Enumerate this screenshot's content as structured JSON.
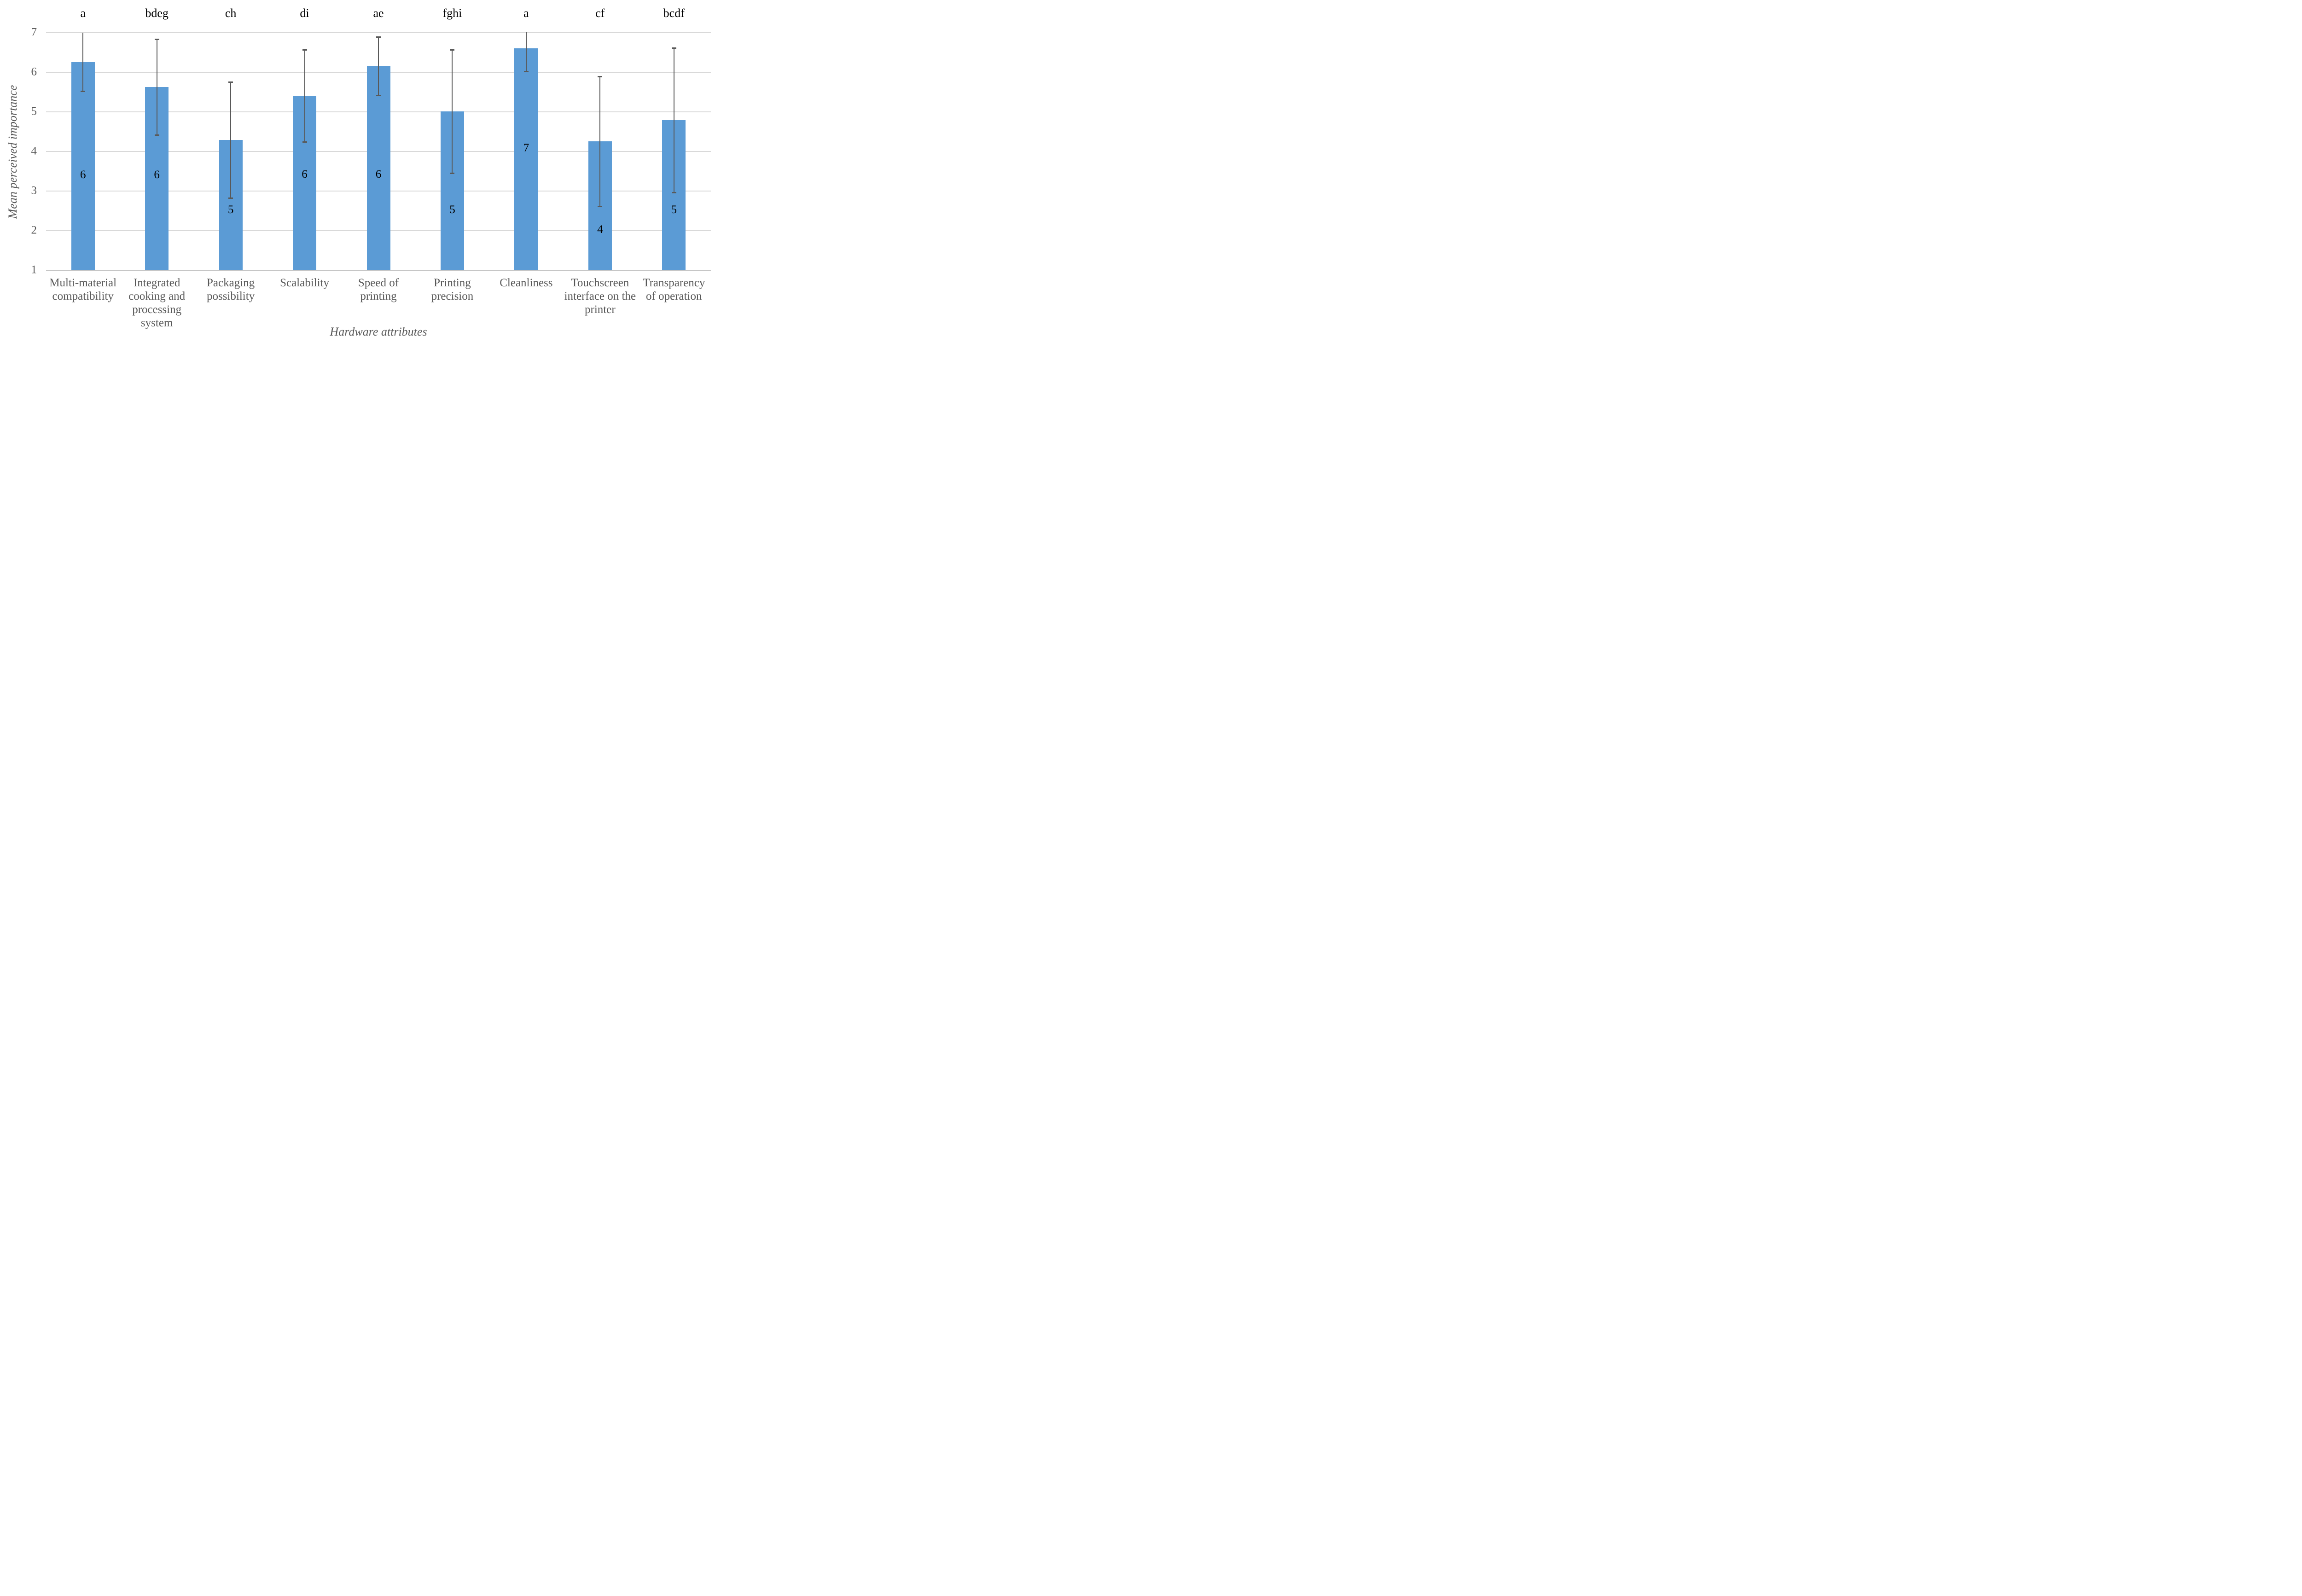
{
  "figure": {
    "background": "#FFFFFF"
  },
  "chart_data": {
    "type": "bar",
    "title": "",
    "xlabel": "Hardware attributes",
    "ylabel": "Mean perceived importance",
    "ylim": [
      1,
      7
    ],
    "yticks": [
      7,
      6,
      5,
      4,
      3,
      2,
      1
    ],
    "grid": "horizontal-gridlines-on",
    "legend": "none",
    "categories": [
      "Multi-material compatibility",
      "Integrated cooking and processing system",
      "Packaging possibility",
      "Scalability",
      "Speed of printing",
      "Printing precision",
      "Cleanliness",
      "Touchscreen interface on the printer",
      "Transparency of operation"
    ],
    "category_lines": [
      [
        "Multi-material",
        "compatibility"
      ],
      [
        "Integrated",
        "cooking and",
        "processing",
        "system"
      ],
      [
        "Packaging",
        "possibility"
      ],
      [
        "Scalability"
      ],
      [
        "Speed of",
        "printing"
      ],
      [
        "Printing",
        "precision"
      ],
      [
        "Cleanliness"
      ],
      [
        "Touchscreen",
        "interface on the",
        "printer"
      ],
      [
        "Transparency",
        "of operation"
      ]
    ],
    "significance_letters": [
      "a",
      "bdeg",
      "ch",
      "di",
      "ae",
      "fghi",
      "a",
      "cf",
      "bcdf"
    ],
    "series": [
      {
        "name": "Mean perceived importance",
        "values": [
          6.26,
          5.63,
          4.29,
          5.41,
          6.16,
          5.01,
          6.6,
          4.26,
          4.79
        ],
        "error_low": [
          5.52,
          4.42,
          2.82,
          4.25,
          5.42,
          3.45,
          6.02,
          2.62,
          2.96
        ],
        "error_high": [
          7.0,
          6.84,
          5.76,
          6.57,
          6.9,
          6.57,
          7.02,
          5.9,
          6.62
        ],
        "error_top_cap_visible": [
          false,
          true,
          true,
          true,
          true,
          true,
          false,
          true,
          true
        ],
        "bar_labels": [
          "6",
          "6",
          "5",
          "6",
          "6",
          "5",
          "7",
          "4",
          "5"
        ],
        "bar_label_positions": [
          3.41,
          3.41,
          2.52,
          3.42,
          3.42,
          2.52,
          4.08,
          2.02,
          2.52
        ]
      }
    ],
    "colors": {
      "bar": "#5B9BD5",
      "error_bar": "#595959",
      "gridline": "#D9D9D9",
      "axis_line": "#BFBFBF",
      "axis_text": "#595959",
      "bar_label_text": "#000000",
      "significance_letter_text": "#000000"
    }
  }
}
